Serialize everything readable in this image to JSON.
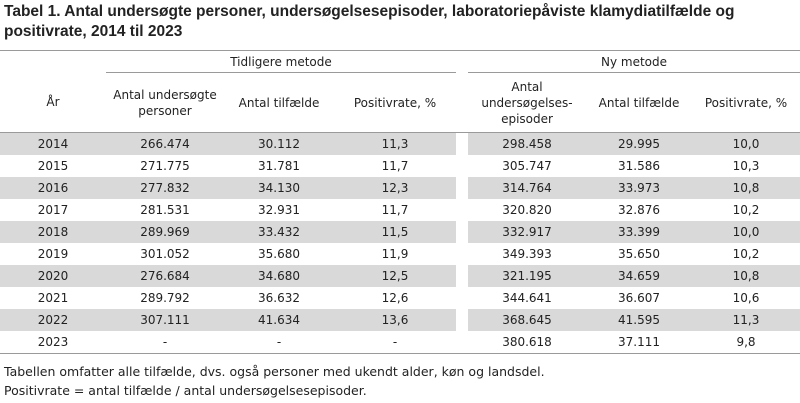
{
  "title": "Tabel 1. Antal undersøgte personer, undersøgelsesepisoder, laboratoriepåviste klamydiatilfælde og positivrate, 2014 til 2023",
  "groups": {
    "old": "Tidligere metode",
    "new": "Ny metode"
  },
  "headers": {
    "year": "År",
    "old_examined": "Antal undersøgte personer",
    "old_cases": "Antal tilfælde",
    "old_rate": "Positivrate, %",
    "new_episodes": "Antal undersøgelses-episoder",
    "new_cases": "Antal tilfælde",
    "new_rate": "Positivrate, %"
  },
  "rows": [
    {
      "year": "2014",
      "old_examined": "266.474",
      "old_cases": "30.112",
      "old_rate": "11,3",
      "new_episodes": "298.458",
      "new_cases": "29.995",
      "new_rate": "10,0"
    },
    {
      "year": "2015",
      "old_examined": "271.775",
      "old_cases": "31.781",
      "old_rate": "11,7",
      "new_episodes": "305.747",
      "new_cases": "31.586",
      "new_rate": "10,3"
    },
    {
      "year": "2016",
      "old_examined": "277.832",
      "old_cases": "34.130",
      "old_rate": "12,3",
      "new_episodes": "314.764",
      "new_cases": "33.973",
      "new_rate": "10,8"
    },
    {
      "year": "2017",
      "old_examined": "281.531",
      "old_cases": "32.931",
      "old_rate": "11,7",
      "new_episodes": "320.820",
      "new_cases": "32.876",
      "new_rate": "10,2"
    },
    {
      "year": "2018",
      "old_examined": "289.969",
      "old_cases": "33.432",
      "old_rate": "11,5",
      "new_episodes": "332.917",
      "new_cases": "33.399",
      "new_rate": "10,0"
    },
    {
      "year": "2019",
      "old_examined": "301.052",
      "old_cases": "35.680",
      "old_rate": "11,9",
      "new_episodes": "349.393",
      "new_cases": "35.650",
      "new_rate": "10,2"
    },
    {
      "year": "2020",
      "old_examined": "276.684",
      "old_cases": "34.680",
      "old_rate": "12,5",
      "new_episodes": "321.195",
      "new_cases": "34.659",
      "new_rate": "10,8"
    },
    {
      "year": "2021",
      "old_examined": "289.792",
      "old_cases": "36.632",
      "old_rate": "12,6",
      "new_episodes": "344.641",
      "new_cases": "36.607",
      "new_rate": "10,6"
    },
    {
      "year": "2022",
      "old_examined": "307.111",
      "old_cases": "41.634",
      "old_rate": "13,6",
      "new_episodes": "368.645",
      "new_cases": "41.595",
      "new_rate": "11,3"
    },
    {
      "year": "2023",
      "old_examined": "-",
      "old_cases": "-",
      "old_rate": "-",
      "new_episodes": "380.618",
      "new_cases": "37.111",
      "new_rate": "9,8"
    }
  ],
  "footnotes": [
    "Tabellen omfatter alle tilfælde, dvs. også personer med ukendt alder, køn og landsdel.",
    "Positivrate = antal tilfælde / antal undersøgelsesepisoder."
  ],
  "colors": {
    "shade": "#d9d9d9",
    "rule": "#9a9a9a",
    "text": "#222222"
  }
}
